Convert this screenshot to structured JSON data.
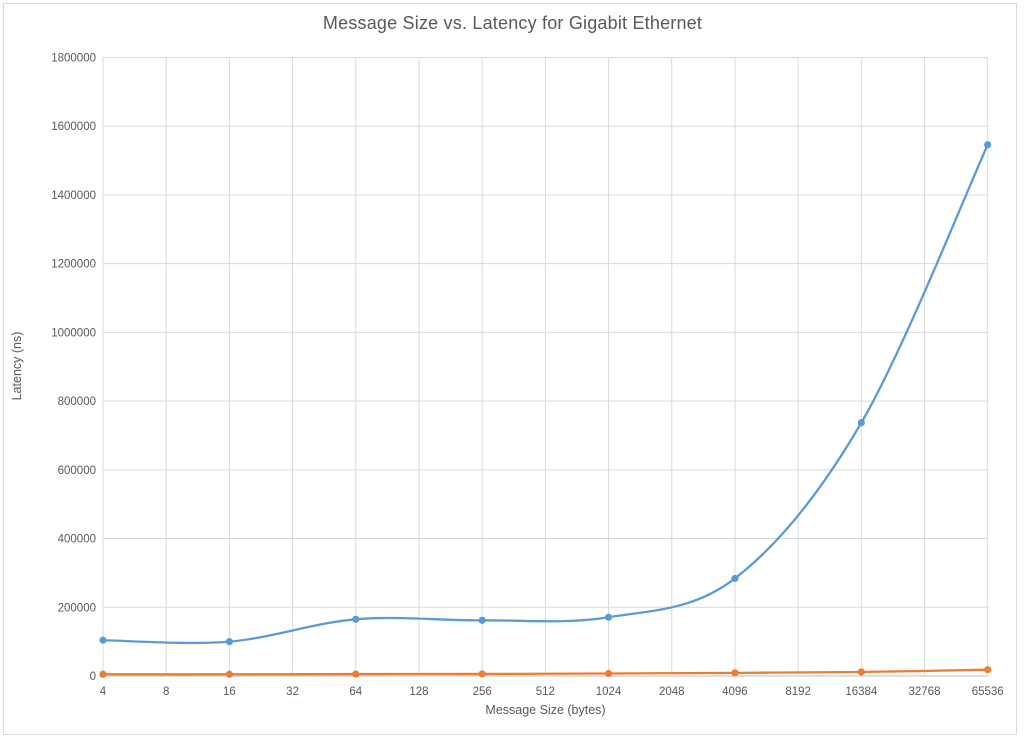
{
  "window": {
    "background": "#ffffff",
    "border_color": "#d9d9d9"
  },
  "styles": {
    "text_color": "#595959",
    "gridline_color": "#d9d9d9",
    "axis_line_color": "#bfbfbf",
    "series1_color": "#5b9bd5",
    "series2_color": "#ed7d31"
  },
  "chart_data": {
    "type": "line",
    "title": "Message Size vs. Latency for Gigabit Ethernet",
    "xlabel": "Message Size (bytes)",
    "ylabel": "Latency (ns)",
    "categories": [
      "4",
      "8",
      "16",
      "32",
      "64",
      "128",
      "256",
      "512",
      "1024",
      "2048",
      "4096",
      "8192",
      "16384",
      "32768",
      "65536"
    ],
    "y_tick_labels": [
      "0",
      "200000",
      "400000",
      "600000",
      "800000",
      "1000000",
      "1200000",
      "1400000",
      "1600000",
      "1800000"
    ],
    "ylim": [
      0,
      1800000
    ],
    "y_tick_step": 200000,
    "grid": true,
    "legend_position": "none",
    "smooth_lines": true,
    "series": [
      {
        "name": "series-1-blue",
        "color": "#5b9bd5",
        "x": [
          "4",
          "16",
          "64",
          "256",
          "1024",
          "4096",
          "16384",
          "65536"
        ],
        "values": [
          104000,
          100000,
          165000,
          162000,
          171000,
          284000,
          737000,
          1546000
        ]
      },
      {
        "name": "series-2-orange",
        "color": "#ed7d31",
        "x": [
          "4",
          "16",
          "64",
          "256",
          "1024",
          "4096",
          "16384",
          "65536"
        ],
        "values": [
          5000,
          5000,
          5600,
          6000,
          7300,
          9200,
          11700,
          18300
        ]
      }
    ]
  }
}
